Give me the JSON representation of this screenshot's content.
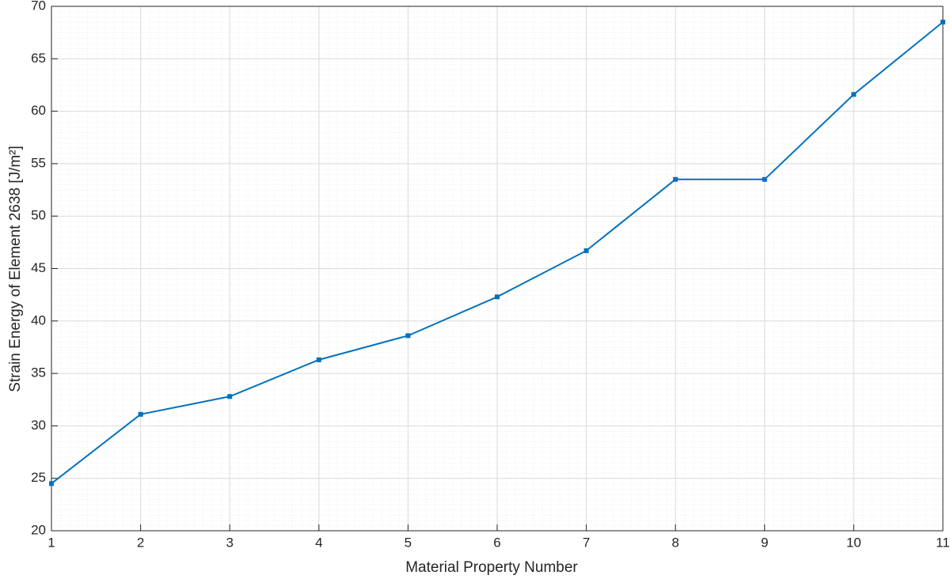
{
  "chart_data": {
    "type": "line",
    "xlabel": "Material Property Number",
    "ylabel": "Strain Energy of Element 2638 [J/m²]",
    "x": [
      1,
      2,
      3,
      4,
      5,
      6,
      7,
      8,
      9,
      10,
      11
    ],
    "series": [
      {
        "color": "#0072bd",
        "values": [
          24.5,
          31.1,
          32.8,
          36.3,
          38.6,
          42.3,
          46.7,
          53.5,
          53.5,
          61.6,
          68.5
        ]
      }
    ],
    "xlim": [
      1,
      11
    ],
    "xticks": [
      1,
      2,
      3,
      4,
      5,
      6,
      7,
      8,
      9,
      10,
      11
    ],
    "ylim": [
      20,
      70
    ],
    "yticks": [
      20,
      25,
      30,
      35,
      40,
      45,
      50,
      55,
      60,
      65,
      70
    ],
    "grid": true,
    "minor_grid": true
  }
}
